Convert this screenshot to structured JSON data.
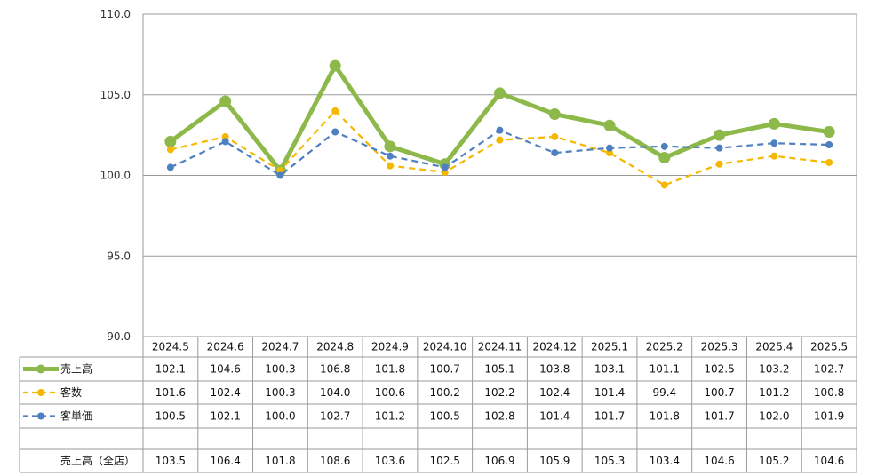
{
  "chart_data": {
    "type": "line",
    "categories": [
      "2024.5",
      "2024.6",
      "2024.7",
      "2024.8",
      "2024.9",
      "2024.10",
      "2024.11",
      "2024.12",
      "2025.1",
      "2025.2",
      "2025.3",
      "2025.4",
      "2025.5"
    ],
    "ylim": [
      90.0,
      110.0
    ],
    "yticks": [
      "90.0",
      "95.0",
      "100.0",
      "105.0",
      "110.0"
    ],
    "grid": true,
    "legend": "data-table-left",
    "series": [
      {
        "name": "売上高",
        "color": "#8db84a",
        "style": "solid",
        "values": [
          102.1,
          104.6,
          100.3,
          106.8,
          101.8,
          100.7,
          105.1,
          103.8,
          103.1,
          101.1,
          102.5,
          103.2,
          102.7
        ],
        "labels": [
          "102.1",
          "104.6",
          "100.3",
          "106.8",
          "101.8",
          "100.7",
          "105.1",
          "103.8",
          "103.1",
          "101.1",
          "102.5",
          "103.2",
          "102.7"
        ]
      },
      {
        "name": "客数",
        "color": "#f5b800",
        "style": "dashed",
        "values": [
          101.6,
          102.4,
          100.3,
          104.0,
          100.6,
          100.2,
          102.2,
          102.4,
          101.4,
          99.4,
          100.7,
          101.2,
          100.8
        ],
        "labels": [
          "101.6",
          "102.4",
          "100.3",
          "104.0",
          "100.6",
          "100.2",
          "102.2",
          "102.4",
          "101.4",
          "99.4",
          "100.7",
          "101.2",
          "100.8"
        ]
      },
      {
        "name": "客単価",
        "color": "#4e7fc0",
        "style": "dashed",
        "values": [
          100.5,
          102.1,
          100.0,
          102.7,
          101.2,
          100.5,
          102.8,
          101.4,
          101.7,
          101.8,
          101.7,
          102.0,
          101.9
        ],
        "labels": [
          "100.5",
          "102.1",
          "100.0",
          "102.7",
          "101.2",
          "100.5",
          "102.8",
          "101.4",
          "101.7",
          "101.8",
          "101.7",
          "102.0",
          "101.9"
        ]
      }
    ],
    "table_extra_row": {
      "name": "売上高（全店）",
      "values": [
        "103.5",
        "106.4",
        "101.8",
        "108.6",
        "103.6",
        "102.5",
        "106.9",
        "105.9",
        "105.3",
        "103.4",
        "104.6",
        "105.2",
        "104.6"
      ]
    }
  }
}
